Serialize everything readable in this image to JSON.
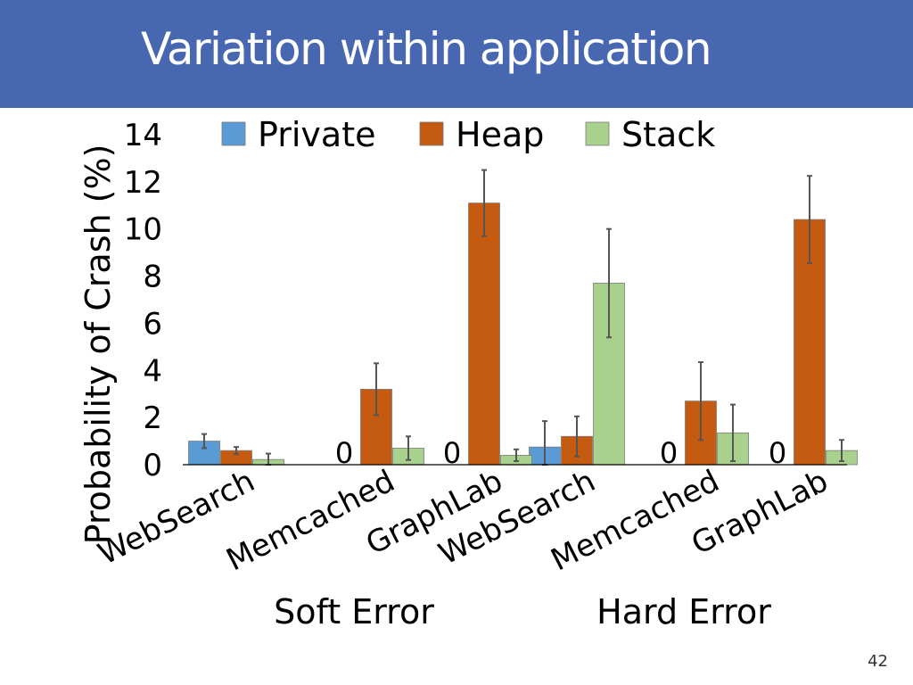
{
  "slide": {
    "title": "Variation within application",
    "page_number": "42"
  },
  "chart_data": {
    "type": "bar",
    "title": "",
    "ylabel": "Probability of Crash (%)",
    "ylim": [
      0,
      14
    ],
    "yticks": [
      "0",
      "2",
      "4",
      "6",
      "8",
      "10",
      "12",
      "14"
    ],
    "categories": [
      "WebSearch",
      "Memcached",
      "GraphLab",
      "WebSearch",
      "Memcached",
      "GraphLab"
    ],
    "groups": [
      {
        "label": "Soft Error",
        "categories": [
          "WebSearch",
          "Memcached",
          "GraphLab"
        ]
      },
      {
        "label": "Hard Error",
        "categories": [
          "WebSearch",
          "Memcached",
          "GraphLab"
        ]
      }
    ],
    "legend_position": "top",
    "grid": false,
    "series": [
      {
        "name": "Private",
        "color": "#5b9bd5",
        "values": [
          1.0,
          0,
          0,
          0.75,
          0,
          0
        ],
        "errors": [
          0.3,
          0,
          0,
          1.1,
          0,
          0
        ],
        "value_labels": [
          "",
          "0",
          "0",
          "",
          "0",
          "0"
        ]
      },
      {
        "name": "Heap",
        "color": "#c55a11",
        "values": [
          0.6,
          3.2,
          11.1,
          1.2,
          2.7,
          10.4
        ],
        "errors": [
          0.15,
          1.1,
          1.4,
          0.85,
          1.65,
          1.85
        ],
        "value_labels": [
          "",
          "",
          "",
          "",
          "",
          ""
        ]
      },
      {
        "name": "Stack",
        "color": "#a9d18e",
        "values": [
          0.22,
          0.7,
          0.4,
          7.7,
          1.35,
          0.6
        ],
        "errors": [
          0.25,
          0.5,
          0.25,
          2.3,
          1.2,
          0.45
        ],
        "value_labels": [
          "",
          "",
          "",
          "",
          "",
          ""
        ]
      }
    ]
  }
}
